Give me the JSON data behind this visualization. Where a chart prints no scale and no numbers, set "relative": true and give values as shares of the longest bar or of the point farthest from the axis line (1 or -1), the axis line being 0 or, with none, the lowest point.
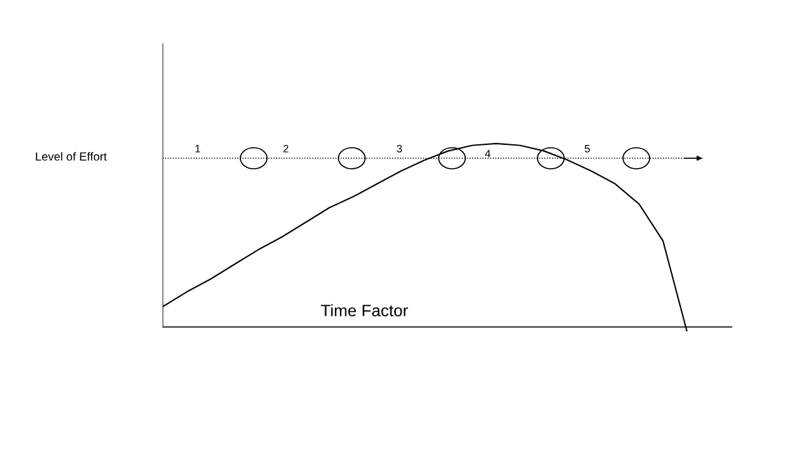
{
  "chart_data": {
    "type": "line",
    "relative": true,
    "xlabel": "Time Factor",
    "ylabel": "Level of Effort",
    "categories": [
      null,
      null,
      null,
      null,
      null,
      null,
      null,
      null,
      null,
      null,
      null,
      null,
      null,
      null,
      null,
      null,
      null,
      null,
      null,
      null,
      null,
      null,
      null
    ],
    "series": [
      {
        "color": "#000000",
        "values": [
          0.11,
          0.19,
          0.26,
          0.34,
          0.42,
          0.49,
          0.57,
          0.65,
          0.71,
          0.78,
          0.85,
          0.91,
          0.96,
          0.99,
          1.0,
          0.99,
          0.96,
          0.91,
          0.85,
          0.78,
          0.67,
          0.47,
          -0.02
        ]
      }
    ],
    "ref_lines": [
      {
        "axis": "y",
        "value": 0.92,
        "line_style": "dotted",
        "color": "#000000"
      }
    ],
    "annotations": [
      "1",
      "2",
      "3",
      "4",
      "5"
    ],
    "marker": "none",
    "line_style": "solid",
    "legend": false
  }
}
